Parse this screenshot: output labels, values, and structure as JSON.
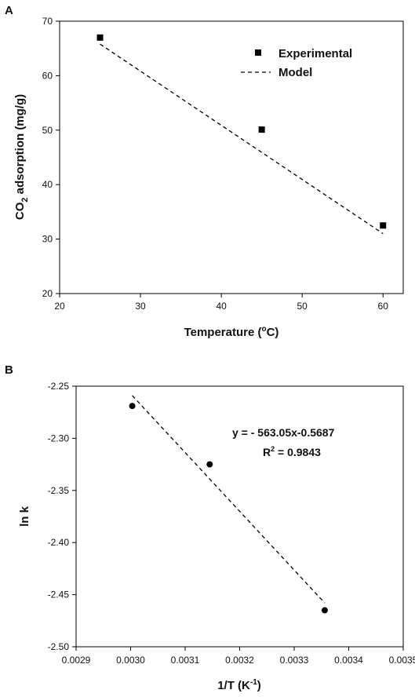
{
  "chart_data": [
    {
      "type": "scatter",
      "panel_label": "A",
      "xlabel": "Temperature (",
      "xlabel_sup": "o",
      "xlabel_tail": "C)",
      "ylabel_pre": "CO",
      "ylabel_sub": "2",
      "ylabel_tail": " adsorption (mg/g)",
      "xlim": [
        20,
        62.5
      ],
      "ylim": [
        20,
        70
      ],
      "xticks": [
        20,
        30,
        40,
        50,
        60
      ],
      "yticks": [
        20,
        30,
        40,
        50,
        60,
        70
      ],
      "series": [
        {
          "name": "Experimental",
          "kind": "markers",
          "marker": "square",
          "x": [
            25,
            45,
            60
          ],
          "y": [
            67,
            50.1,
            32.5
          ]
        },
        {
          "name": "Model",
          "kind": "dashed-line",
          "x": [
            25,
            60
          ],
          "y": [
            65.8,
            31
          ]
        }
      ],
      "legend_position": "top-right",
      "grid": false
    },
    {
      "type": "scatter",
      "panel_label": "B",
      "xlabel": "1/T (K",
      "xlabel_sup": "-1",
      "xlabel_tail": ")",
      "ylabel": "ln k",
      "xlim": [
        0.0029,
        0.0035
      ],
      "ylim": [
        -2.5,
        -2.25
      ],
      "xticks": [
        "0.0029",
        "0.0030",
        "0.0031",
        "0.0032",
        "0.0033",
        "0.0034",
        "0.0035"
      ],
      "yticks": [
        "-2.25",
        "-2.30",
        "-2.35",
        "-2.40",
        "-2.45",
        "-2.50"
      ],
      "series": [
        {
          "kind": "markers",
          "marker": "circle",
          "x": [
            0.003003,
            0.003145,
            0.003356
          ],
          "y": [
            -2.269,
            -2.325,
            -2.465
          ]
        },
        {
          "kind": "dashed-line",
          "x": [
            0.003003,
            0.003356
          ],
          "y": [
            -2.259,
            -2.458
          ]
        }
      ],
      "annotation_eq": "y = - 563.05x-0.5687",
      "annotation_r2_pre": "R",
      "annotation_r2_sup": "2",
      "annotation_r2_tail": " = 0.9843",
      "grid": false
    }
  ]
}
